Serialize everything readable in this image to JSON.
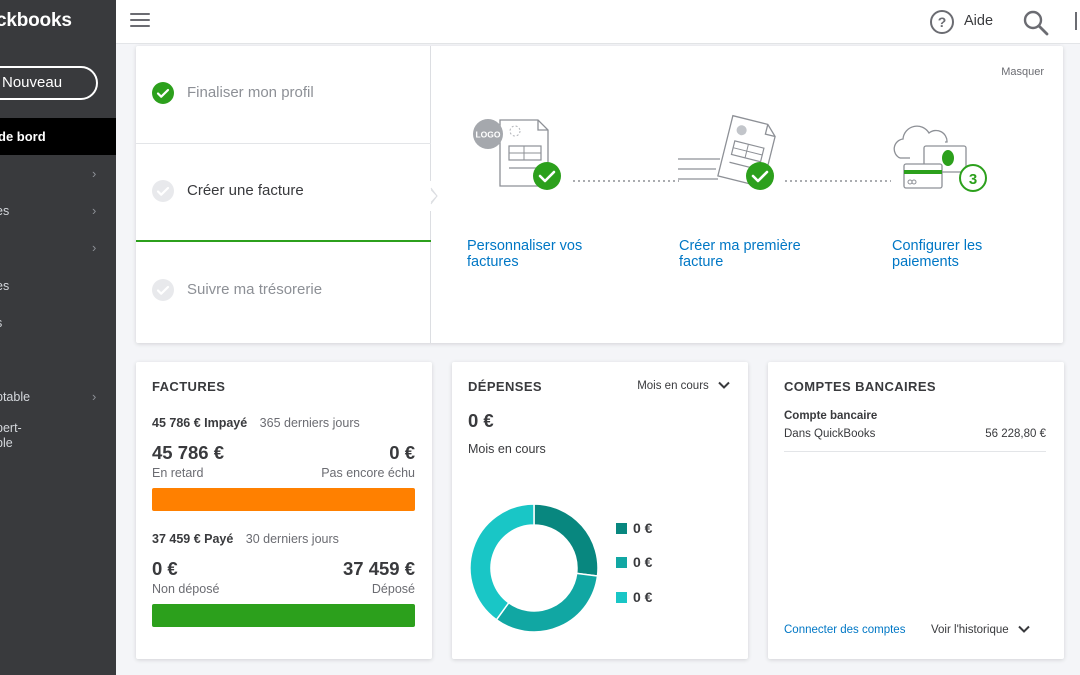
{
  "sidebar": {
    "logo": "ckbooks",
    "new_button": "Nouveau",
    "active_item": "de bord",
    "items": [
      {
        "label": "",
        "has_chevron": true
      },
      {
        "label": "es",
        "has_chevron": true
      },
      {
        "label": "",
        "has_chevron": true
      },
      {
        "label": "es",
        "has_chevron": false
      },
      {
        "label": "s",
        "has_chevron": false
      },
      {
        "label": "",
        "has_chevron": false
      },
      {
        "label": "ptable",
        "has_chevron": true
      },
      {
        "label": "pert-",
        "has_chevron": false
      },
      {
        "label": "ble",
        "has_chevron": false
      }
    ]
  },
  "topbar": {
    "help_label": "Aide",
    "icons": [
      "menu-icon",
      "help-icon",
      "search-icon"
    ]
  },
  "setup": {
    "hide_link": "Masquer",
    "steps": [
      {
        "label": "Finaliser mon profil",
        "done": true
      },
      {
        "label": "Créer une facture",
        "done": false,
        "active": true
      },
      {
        "label": "Suivre ma trésorerie",
        "done": false
      }
    ],
    "tasks": [
      {
        "label": "Personnaliser vos factures",
        "line1": "Personnaliser vos",
        "line2": "factures",
        "status": "done"
      },
      {
        "label": "Créer ma première facture",
        "line1": "Créer ma première",
        "line2": "facture",
        "status": "done"
      },
      {
        "label": "Configurer les paiements",
        "line1": "Configurer les",
        "line2": "paiements",
        "status": "3"
      }
    ],
    "logo_badge": "LOGO",
    "step_number": "3"
  },
  "factures": {
    "title": "FACTURES",
    "unpaid_summary": "45 786 € Impayé",
    "unpaid_period": "365 derniers jours",
    "overdue_amount": "45 786 €",
    "overdue_label": "En retard",
    "not_due_amount": "0 €",
    "not_due_label": "Pas encore échu",
    "paid_summary": "37 459 € Payé",
    "paid_period": "30 derniers jours",
    "not_deposited_amount": "0 €",
    "not_deposited_label": "Non déposé",
    "deposited_amount": "37 459 €",
    "deposited_label": "Déposé",
    "colors": {
      "overdue": "#ff8000",
      "deposited": "#2ca01c"
    }
  },
  "depenses": {
    "title": "DÉPENSES",
    "period_select": "Mois en cours",
    "total": "0 €",
    "period_label": "Mois en cours",
    "donut": [
      {
        "value": 0.27,
        "color": "#08877f"
      },
      {
        "value": 0.33,
        "color": "#11a7a3"
      },
      {
        "value": 0.4,
        "color": "#19c6c6"
      }
    ],
    "legend": [
      {
        "value": "0 €",
        "color": "#08877f"
      },
      {
        "value": "0 €",
        "color": "#11a7a3"
      },
      {
        "value": "0 €",
        "color": "#19c6c6"
      }
    ]
  },
  "comptes": {
    "title": "COMPTES BANCAIRES",
    "account_name": "Compte bancaire",
    "account_source": "Dans QuickBooks",
    "account_balance": "56 228,80 €",
    "connect_link": "Connecter des comptes",
    "history_link": "Voir l'historique"
  }
}
